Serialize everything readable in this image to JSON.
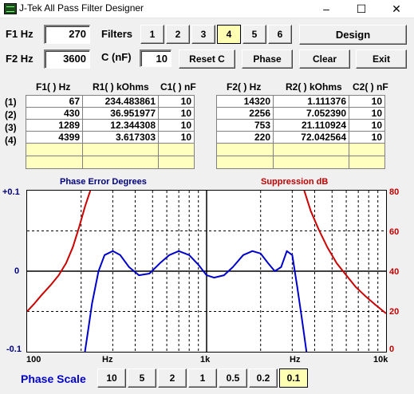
{
  "window": {
    "title": "J-Tek All Pass Filter Designer",
    "min": "–",
    "max": "☐",
    "close": "✕"
  },
  "inputs": {
    "f1_label": "F1 Hz",
    "f1_value": "270",
    "f2_label": "F2 Hz",
    "f2_value": "3600",
    "c_label": "C (nF)",
    "c_value": "10",
    "filters_label": "Filters"
  },
  "filters": [
    "1",
    "2",
    "3",
    "4",
    "5",
    "6"
  ],
  "selected_filter": "4",
  "buttons": {
    "design": "Design",
    "reset_c": "Reset C",
    "phase": "Phase",
    "clear": "Clear",
    "exit": "Exit"
  },
  "table1": {
    "headers": [
      "F1( ) Hz",
      "R1( ) kOhms",
      "C1( ) nF"
    ],
    "rows": [
      [
        "67",
        "234.483861",
        "10"
      ],
      [
        "430",
        "36.951977",
        "10"
      ],
      [
        "1289",
        "12.344308",
        "10"
      ],
      [
        "4399",
        "3.617303",
        "10"
      ]
    ]
  },
  "table2": {
    "headers": [
      "F2( ) Hz",
      "R2( ) kOhms",
      "C2( ) nF"
    ],
    "rows": [
      [
        "14320",
        "1.111376",
        "10"
      ],
      [
        "2256",
        "7.052390",
        "10"
      ],
      [
        "753",
        "21.110924",
        "10"
      ],
      [
        "220",
        "72.042564",
        "10"
      ]
    ]
  },
  "row_labels": [
    "(1)",
    "(2)",
    "(3)",
    "(4)"
  ],
  "chart_data": {
    "type": "line",
    "title_left": "Phase Error Degrees",
    "title_right": "Suppression dB",
    "x_scale": "log",
    "xlim": [
      100,
      10000
    ],
    "x_ticks": [
      "100",
      "Hz",
      "1k",
      "Hz",
      "10k"
    ],
    "y_left_lim": [
      -0.1,
      0.1
    ],
    "y_left_ticks": [
      "+0.1",
      "0",
      "-0.1"
    ],
    "y_right_lim": [
      0,
      80
    ],
    "y_right_ticks": [
      "80",
      "60",
      "40",
      "20",
      "0"
    ],
    "grid": true,
    "series": [
      {
        "color": "#0000cc",
        "axis": "left",
        "x": [
          210,
          220,
          230,
          250,
          270,
          300,
          330,
          370,
          420,
          480,
          550,
          620,
          700,
          800,
          900,
          1000,
          1100,
          1250,
          1400,
          1600,
          1800,
          2000,
          2200,
          2400,
          2600,
          2800,
          3000,
          3200,
          3400,
          3600
        ],
        "y": [
          -0.1,
          -0.07,
          -0.04,
          0.0,
          0.02,
          0.025,
          0.02,
          0.005,
          -0.005,
          -0.003,
          0.01,
          0.02,
          0.025,
          0.02,
          0.008,
          -0.005,
          -0.008,
          -0.005,
          0.005,
          0.02,
          0.025,
          0.022,
          0.01,
          0.0,
          0.005,
          0.025,
          0.02,
          -0.02,
          -0.06,
          -0.1
        ]
      },
      {
        "color": "#cc0000",
        "axis": "right",
        "x": [
          100,
          110,
          120,
          135,
          150,
          165,
          180,
          195,
          210,
          225
        ],
        "y": [
          20,
          24,
          28,
          33,
          38,
          44,
          52,
          62,
          72,
          80
        ]
      },
      {
        "color": "#cc0000",
        "axis": "right",
        "x": [
          3500,
          3800,
          4200,
          4700,
          5300,
          6000,
          6800,
          7800,
          8800,
          10000
        ],
        "y": [
          80,
          70,
          61,
          52,
          44,
          38,
          32,
          27,
          23,
          19
        ]
      }
    ]
  },
  "phase_scale": {
    "label": "Phase Scale",
    "options": [
      "10",
      "5",
      "2",
      "1",
      "0.5",
      "0.2",
      "0.1"
    ],
    "selected": "0.1"
  }
}
